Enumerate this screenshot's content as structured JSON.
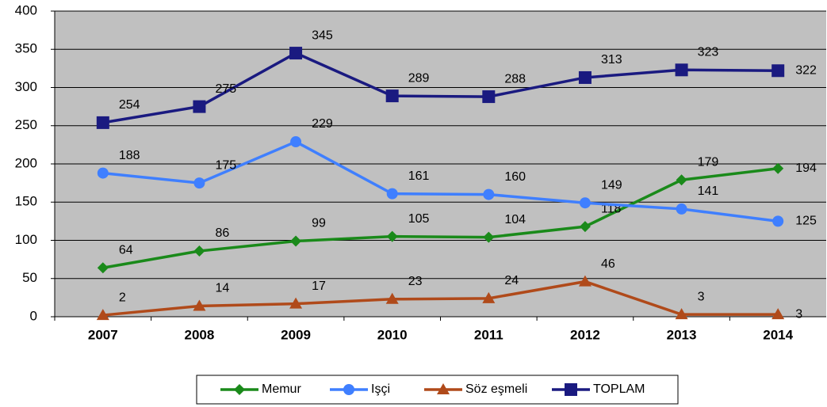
{
  "chart_data": {
    "type": "line",
    "categories": [
      "2007",
      "2008",
      "2009",
      "2010",
      "2011",
      "2012",
      "2013",
      "2014"
    ],
    "series": [
      {
        "name": "Memur",
        "color": "#1a8a1a",
        "marker": "diamond",
        "values": [
          64,
          86,
          99,
          105,
          104,
          118,
          179,
          194
        ]
      },
      {
        "name": "Işçi",
        "color": "#3f7fff",
        "marker": "circle",
        "values": [
          188,
          175,
          229,
          161,
          160,
          149,
          141,
          125
        ]
      },
      {
        "name": "Söz eşmeli",
        "color": "#b04a1a",
        "marker": "triangle",
        "values": [
          2,
          14,
          17,
          23,
          24,
          46,
          3,
          3
        ]
      },
      {
        "name": "TOPLAM",
        "color": "#1a1a80",
        "marker": "square",
        "values": [
          254,
          275,
          345,
          289,
          288,
          313,
          323,
          322
        ]
      }
    ],
    "ylim": [
      0,
      400
    ],
    "yticks": [
      0,
      50,
      100,
      150,
      200,
      250,
      300,
      350,
      400
    ],
    "grid": true,
    "legend": "bottom"
  }
}
